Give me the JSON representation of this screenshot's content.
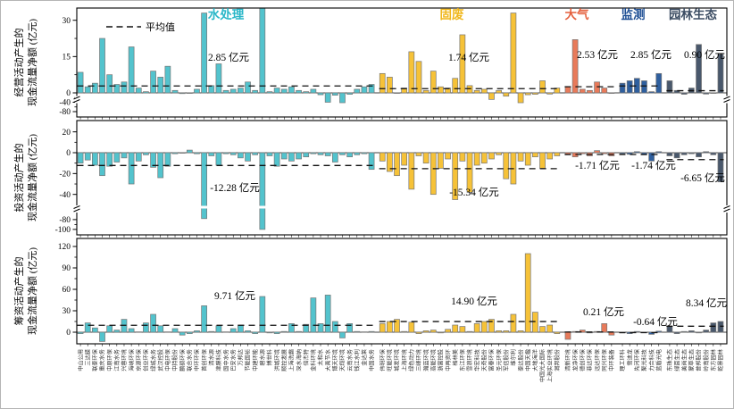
{
  "chart_data": {
    "type": "bar",
    "title": "",
    "legend": "平均值",
    "unit": "亿元",
    "panels": [
      {
        "id": "operating",
        "ylabel": [
          "经营活动产生的",
          "现金流量净额 (亿元)"
        ],
        "yticks": [
          30,
          15,
          0,
          -40,
          -80
        ],
        "axis_break": true,
        "annotations": [
          "2.85 亿元",
          "1.74 亿元",
          "2.53 亿元",
          "2.85 亿元",
          "0.90 亿元"
        ],
        "means": [
          2.85,
          1.74,
          2.53,
          2.85,
          0.9
        ]
      },
      {
        "id": "investing",
        "ylabel": [
          "投资活动产生的",
          "现金流量净额 (亿元)"
        ],
        "yticks": [
          20,
          0,
          -20,
          -40,
          -80,
          -100
        ],
        "axis_break": true,
        "annotations": [
          "-12.28 亿元",
          "-15.34 亿元",
          "-1.71 亿元",
          "-1.74 亿元",
          "-6.65 亿元"
        ],
        "means": [
          -12.28,
          -15.34,
          -1.71,
          -1.74,
          -6.65
        ]
      },
      {
        "id": "financing",
        "ylabel": [
          "筹资活动产生的",
          "现金流量净额 (亿元)"
        ],
        "yticks": [
          120,
          90,
          60,
          30,
          0
        ],
        "axis_break": false,
        "annotations": [
          "9.71 亿元",
          "14.90 亿元",
          "0.21 亿元",
          "-0.64 亿元",
          "8.34 亿元"
        ],
        "means": [
          9.71,
          14.9,
          0.21,
          -0.64,
          8.34
        ]
      }
    ],
    "groups": [
      {
        "name": "水处理",
        "color": "#53c3cd",
        "label_color": "#2ab7c8",
        "companies": [
          "中山公用",
          "三达膜",
          "联泰环保",
          "重庆水务",
          "中原环保",
          "江南水务",
          "兴蓉环境",
          "海峡环保",
          "京源环保",
          "创业环保",
          "绿城水务",
          "武汉控股",
          "中电环保",
          "中持股份",
          "鹏鹞环保",
          "联合水务",
          "中环环保",
          "首创环保",
          "清水源",
          "津膜科技",
          "国中水务",
          "巴安水务",
          "万邦达",
          "节能国祯",
          "中建环能",
          "碧水源",
          "博世科",
          "洪城环境",
          "顺控发展",
          "上海洗霸",
          "深水海纳",
          "倍杰特",
          "金科环境",
          "太和水",
          "大禹节水",
          "博天环境",
          "天翔环境",
          "云南水务",
          "钱江水利",
          "金达莱",
          "中国水务"
        ],
        "operating": [
          8.5,
          2.5,
          4,
          22.5,
          7.5,
          3.5,
          4.5,
          19,
          2,
          0.5,
          9,
          6.5,
          11,
          1,
          -3,
          -1.5,
          1.5,
          33,
          3,
          12,
          1,
          1.5,
          2,
          4.5,
          1,
          35,
          0.5,
          2,
          1.5,
          2.5,
          1,
          0.5,
          1.5,
          -8,
          -40,
          -10,
          -42,
          -6,
          1.5,
          2.5,
          3.5
        ],
        "investing": [
          -10,
          -7,
          -12,
          -22,
          -13,
          -9,
          -5,
          -30,
          -8,
          -2,
          -14,
          -24,
          -13,
          -1,
          -0.5,
          2.5,
          -1,
          -78,
          -3,
          -12,
          -1,
          -2,
          -5,
          -8,
          -2,
          -100,
          -3,
          -13,
          -6,
          -8,
          -6,
          -4,
          -1,
          -2,
          -3,
          -9,
          -2,
          -4,
          -2,
          -1,
          -16
        ],
        "financing": [
          -2,
          13,
          6,
          -13,
          9,
          3,
          18,
          5,
          0.5,
          13,
          25,
          9,
          0.5,
          5,
          -4,
          -2,
          2,
          37,
          1,
          9,
          0.5,
          5,
          10,
          2,
          -2,
          50,
          -1,
          -2,
          1,
          12,
          1,
          11,
          48,
          12,
          52,
          15,
          -8,
          12,
          1,
          0.5,
          1
        ]
      },
      {
        "name": "固废",
        "color": "#f6c238",
        "label_color": "#f0b71c",
        "companies": [
          "伟明环保",
          "旺能环境",
          "城发环境",
          "上海环境",
          "绿色动力",
          "三峰环境",
          "瀚蓝环境",
          "高能环境",
          "浙富控股",
          "中再资环",
          "格林美",
          "东江环保",
          "雪浪环境",
          "华宏科技",
          "天奇股份",
          "富春环保",
          "圣元环保",
          "军信股份",
          "维尔利",
          "泰达股份",
          "中国天楹",
          "大地海洋",
          "中国光大国际",
          "上海实业环境",
          "润邦股份"
        ],
        "operating": [
          8,
          6.5,
          -1,
          2,
          17,
          13,
          1,
          9,
          2.5,
          2,
          6,
          24,
          3,
          1,
          1.5,
          -28,
          1,
          -14,
          33,
          -42,
          -8,
          -6,
          5,
          -5,
          2
        ],
        "investing": [
          -8,
          -18,
          -22,
          -12,
          -35,
          -3,
          -10,
          -40,
          -15,
          -6,
          -45,
          -8,
          -38,
          -12,
          -10,
          -6,
          -2,
          -25,
          -30,
          -8,
          -12,
          -4,
          -15,
          -6,
          -3
        ],
        "financing": [
          12,
          15,
          18,
          1,
          14,
          -2,
          2,
          3,
          -1,
          4,
          10,
          8,
          1,
          12,
          15,
          18,
          2,
          2,
          25,
          2,
          110,
          28,
          8,
          10,
          -2
        ]
      },
      {
        "name": "大气",
        "color": "#e87a5a",
        "label_color": "#e45f3c",
        "companies": [
          "清新环境",
          "龙净环保",
          "德创环保",
          "菲达环保",
          "远达环保",
          "同兴环保",
          "中环装备"
        ],
        "operating": [
          2.5,
          22,
          1.5,
          1,
          4.5,
          2,
          -2
        ],
        "investing": [
          -2,
          -4,
          -1,
          -3,
          2,
          -1,
          -3
        ],
        "financing": [
          -10,
          1,
          3,
          -1,
          1,
          12,
          -4
        ]
      },
      {
        "name": "监测",
        "color": "#2f5f9e",
        "label_color": "#1d4e94",
        "companies": [
          "理工环科",
          "雪迪龙",
          "先河环保",
          "聚光科技",
          "力合科技",
          "蓝盾光电"
        ],
        "operating": [
          4,
          5,
          6,
          5,
          0.5,
          8
        ],
        "investing": [
          -1,
          -1.5,
          1,
          -2,
          -8,
          1
        ],
        "financing": [
          -1,
          -2,
          1,
          -0.5,
          -3,
          1.5
        ]
      },
      {
        "name": "园林生态",
        "color": "#49586c",
        "label_color": "#3c4d63",
        "companies": [
          "东珠生态",
          "绿茵生态",
          "美尚生态",
          "蒙草生态",
          "普邦股份",
          "岭南股份",
          "东方园林",
          "乾景园林"
        ],
        "operating": [
          5,
          1,
          -6,
          2,
          20,
          -5,
          -2,
          16
        ],
        "investing": [
          -3,
          -5,
          -2,
          -1,
          -4,
          1,
          -2,
          -28
        ],
        "financing": [
          8,
          -2,
          1,
          2,
          -1,
          3,
          13,
          15
        ]
      }
    ]
  }
}
